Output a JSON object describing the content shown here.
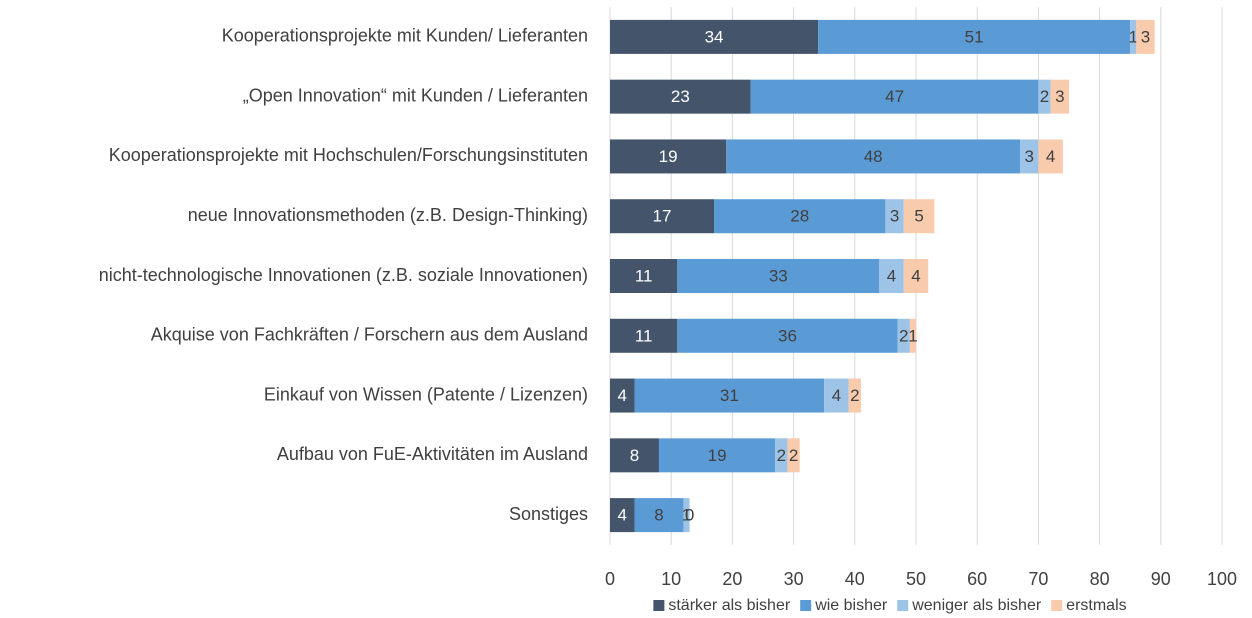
{
  "chart_data": {
    "type": "bar",
    "orientation": "horizontal",
    "stacked": true,
    "categories": [
      "Kooperationsprojekte mit Kunden/ Lieferanten",
      "„Open Innovation“ mit Kunden / Lieferanten",
      "Kooperationsprojekte mit Hochschulen/Forschungsinstituten",
      "neue Innovationsmethoden (z.B. Design-Thinking)",
      "nicht-technologische Innovationen (z.B. soziale Innovationen)",
      "Akquise von Fachkräften / Forschern aus dem Ausland",
      "Einkauf von Wissen (Patente / Lizenzen)",
      "Aufbau von FuE-Aktivitäten im Ausland",
      "Sonstiges"
    ],
    "series": [
      {
        "name": "stärker als bisher",
        "color": "#44546a",
        "values": [
          34,
          23,
          19,
          17,
          11,
          11,
          4,
          8,
          4
        ]
      },
      {
        "name": "wie bisher",
        "color": "#5b9bd5",
        "values": [
          51,
          47,
          48,
          28,
          33,
          36,
          31,
          19,
          8
        ]
      },
      {
        "name": "weniger als bisher",
        "color": "#9dc3e6",
        "values": [
          1,
          2,
          3,
          3,
          4,
          2,
          4,
          2,
          1
        ]
      },
      {
        "name": "erstmals",
        "color": "#f8cbad",
        "values": [
          3,
          3,
          4,
          5,
          4,
          1,
          2,
          2,
          0
        ]
      }
    ],
    "xlim": [
      0,
      100
    ],
    "xticks": [
      0,
      10,
      20,
      30,
      40,
      50,
      60,
      70,
      80,
      90,
      100
    ],
    "grid": true,
    "legend": "bottom"
  }
}
